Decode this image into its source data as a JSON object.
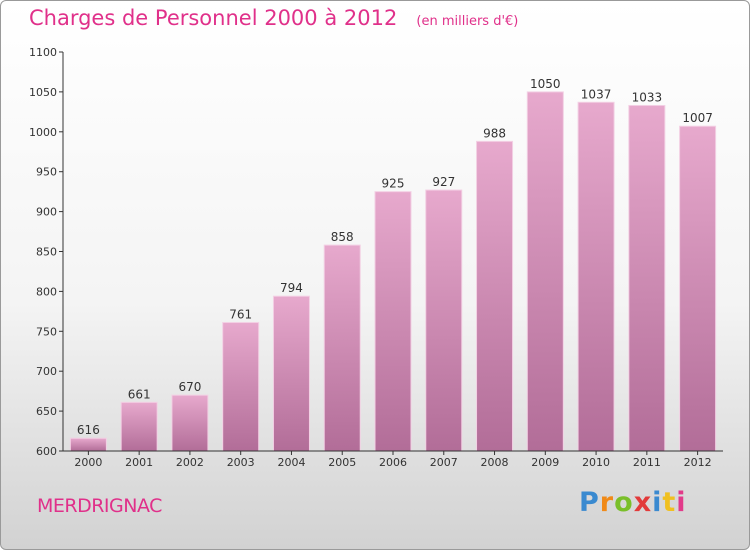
{
  "header": {
    "title": "Charges de Personnel 2000 à 2012",
    "subtitle": "(en milliers d'€)"
  },
  "footer": {
    "commune": "MERDRIGNAC",
    "logo_letters": [
      "P",
      "r",
      "o",
      "x",
      "i",
      "t",
      "i"
    ]
  },
  "colors": {
    "title": "#e0308a",
    "bar_top": "#e7a9cd",
    "bar_bottom": "#b26d98",
    "axis": "#333333"
  },
  "chart_data": {
    "type": "bar",
    "categories": [
      "2000",
      "2001",
      "2002",
      "2003",
      "2004",
      "2005",
      "2006",
      "2007",
      "2008",
      "2009",
      "2010",
      "2011",
      "2012"
    ],
    "values": [
      616,
      661,
      670,
      761,
      794,
      858,
      925,
      927,
      988,
      1050,
      1037,
      1033,
      1007
    ],
    "ylim": [
      600,
      1100
    ],
    "yticks": [
      600,
      650,
      700,
      750,
      800,
      850,
      900,
      950,
      1000,
      1050,
      1100
    ],
    "grid": false
  }
}
